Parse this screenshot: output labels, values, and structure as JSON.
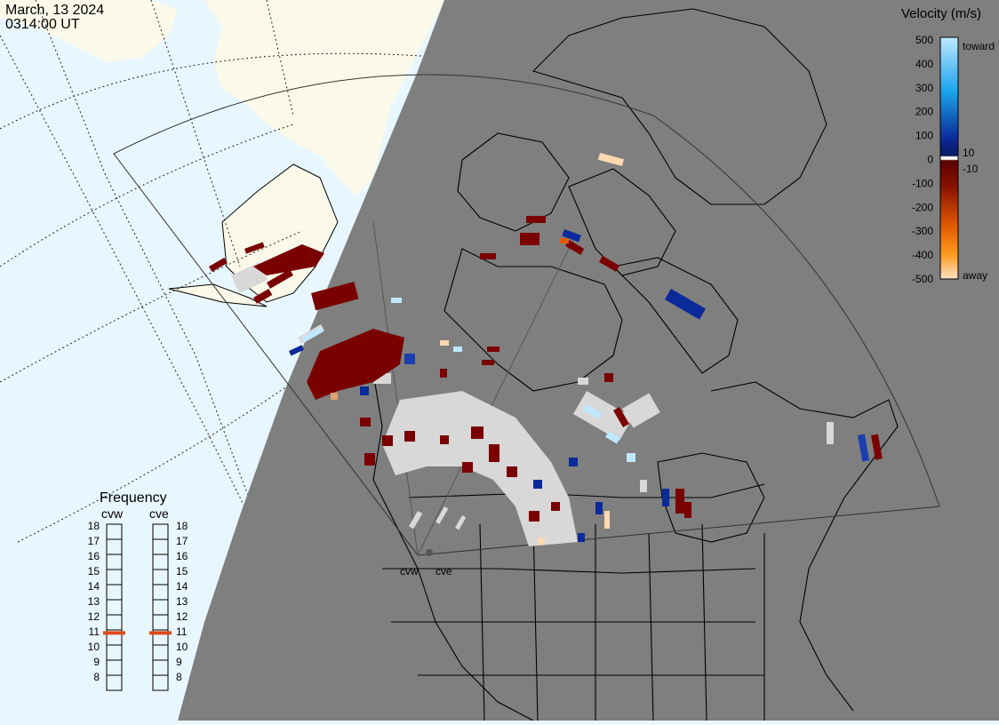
{
  "header": {
    "date": "March, 13 2024",
    "time": "0314:00 UT"
  },
  "legend": {
    "title": "Velocity (m/s)",
    "ticks": [
      "500",
      "400",
      "300",
      "200",
      "100",
      "0",
      "-100",
      "-200",
      "-300",
      "-400",
      "-500"
    ],
    "small_labels": [
      "10",
      "-10"
    ],
    "toward_label": "toward",
    "away_label": "away",
    "colors": {
      "toward_high": "#bfe8ff",
      "toward_mid": "#1ba6ee",
      "toward_low": "#0a2a9a",
      "away_low": "#7a0000",
      "away_mid": "#e05a00",
      "away_high": "#ffd9b0"
    }
  },
  "frequency": {
    "title": "Frequency",
    "radars": [
      "cvw",
      "cve"
    ],
    "scale": [
      "18",
      "17",
      "16",
      "15",
      "14",
      "13",
      "12",
      "11",
      "10",
      "9",
      "8"
    ],
    "cvw_mhz": 10.8,
    "cve_mhz": 10.8,
    "marker_color": "#e04a1a"
  },
  "map": {
    "radar_labels": [
      "cvw",
      "cve"
    ],
    "colors": {
      "night": "#7f7f7f",
      "ocean_day": "#e8f6ff",
      "land_day": "#fbfaea",
      "ground_scatter": "#d8d8d8"
    }
  }
}
